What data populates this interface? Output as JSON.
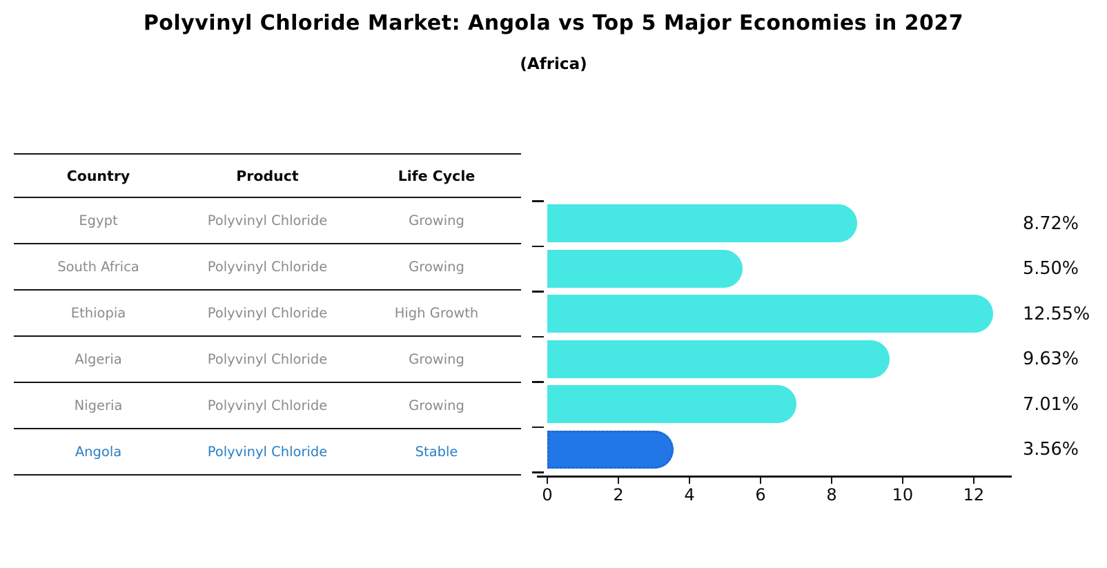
{
  "title": "Polyvinyl Chloride Market: Angola vs Top 5 Major Economies in 2027",
  "subtitle": "(Africa)",
  "table": {
    "headers": {
      "country": "Country",
      "product": "Product",
      "life_cycle": "Life Cycle"
    },
    "rows": [
      {
        "country": "Egypt",
        "product": "Polyvinyl Chloride",
        "life_cycle": "Growing",
        "highlight": false
      },
      {
        "country": "South Africa",
        "product": "Polyvinyl Chloride",
        "life_cycle": "Growing",
        "highlight": false
      },
      {
        "country": "Ethiopia",
        "product": "Polyvinyl Chloride",
        "life_cycle": "High Growth",
        "highlight": false
      },
      {
        "country": "Algeria",
        "product": "Polyvinyl Chloride",
        "life_cycle": "Growing",
        "highlight": false
      },
      {
        "country": "Nigeria",
        "product": "Polyvinyl Chloride",
        "life_cycle": "Growing",
        "highlight": false
      },
      {
        "country": "Angola",
        "product": "Polyvinyl Chloride",
        "life_cycle": "Stable",
        "highlight": true
      }
    ]
  },
  "chart_data": {
    "type": "bar",
    "orientation": "horizontal",
    "title": "Polyvinyl Chloride Market: Angola vs Top 5 Major Economies in 2027 (Africa)",
    "categories": [
      "Egypt",
      "South Africa",
      "Ethiopia",
      "Algeria",
      "Nigeria",
      "Angola"
    ],
    "values": [
      8.72,
      5.5,
      12.55,
      9.63,
      7.01,
      3.56
    ],
    "value_labels": [
      "8.72%",
      "5.50%",
      "12.55%",
      "9.63%",
      "7.01%",
      "3.56%"
    ],
    "xlabel": "",
    "ylabel": "",
    "xticks": [
      0,
      2,
      4,
      6,
      8,
      10,
      12
    ],
    "xtick_labels": [
      "0",
      "2",
      "4",
      "6",
      "8",
      "10",
      "12"
    ],
    "xlim": [
      0,
      13.05
    ],
    "grid": false,
    "legend": false,
    "bar_color": "#47e8e3",
    "highlight_color": "#2277e6",
    "highlight_index": 5,
    "highlight_border_style": "dotted"
  },
  "colors": {
    "background": "#ffffff",
    "table_line": "#141414",
    "table_text": "#8b8b8b",
    "table_header_text": "#0a0a0a",
    "highlight_text": "#2a7ec4",
    "axis": "#141414",
    "label_text": "#0d0d0d"
  }
}
